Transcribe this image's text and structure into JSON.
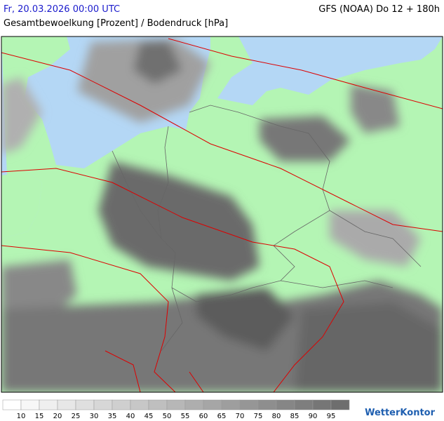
{
  "header": {
    "date": "Fr, 20.03.2026 00:00 UTC",
    "model": "GFS (NOAA) Do 12 + 180h",
    "title": "Gesamtbewoelkung [Prozent] / Bodendruck [hPa]"
  },
  "legend": {
    "labels": [
      10,
      15,
      20,
      25,
      30,
      35,
      40,
      45,
      50,
      55,
      60,
      65,
      70,
      75,
      80,
      85,
      90,
      95
    ]
  },
  "brand": "WetterKontor"
}
